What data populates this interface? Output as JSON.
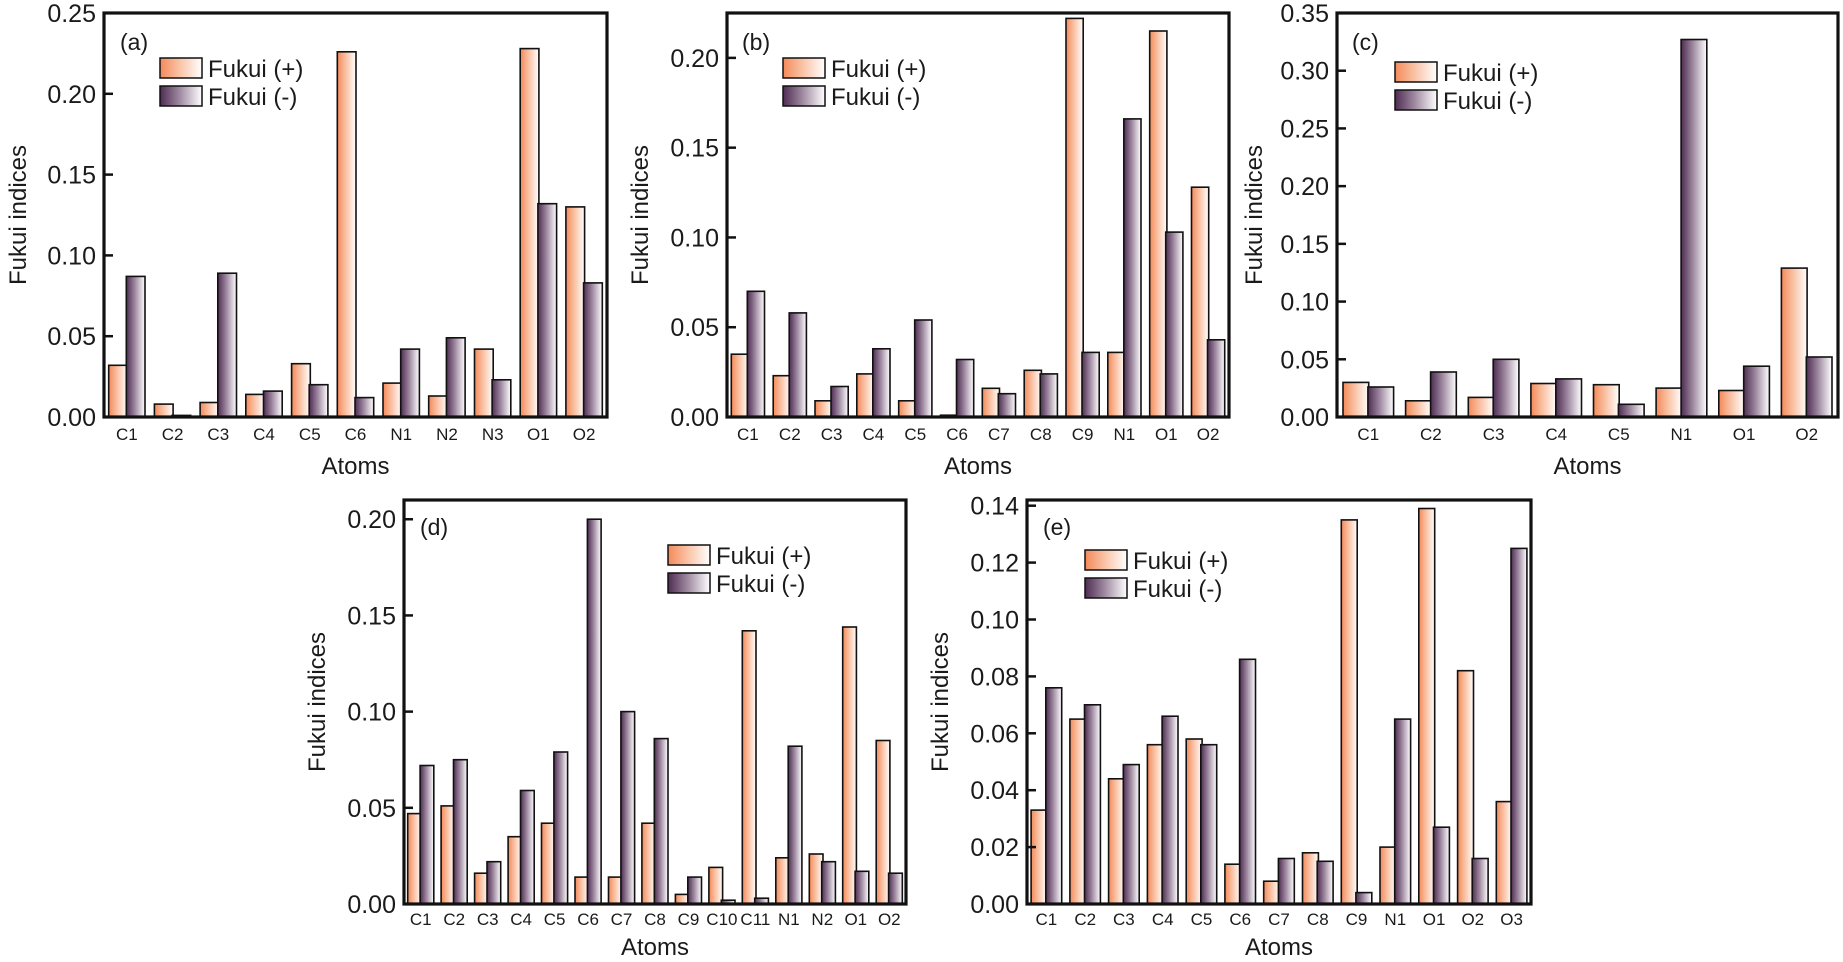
{
  "colors": {
    "plus": "#f4895a",
    "minus": "#4e2c52",
    "frame": "#111111"
  },
  "chart_data": [
    {
      "type": "bar",
      "panel": "(a)",
      "xlabel": "Atoms",
      "ylabel": "Fukui indices",
      "ylim": [
        0,
        0.25
      ],
      "yticks": [
        0.0,
        0.05,
        0.1,
        0.15,
        0.2,
        0.25
      ],
      "ytick_labels": [
        "0.00",
        "0.05",
        "0.10",
        "0.15",
        "0.20",
        "0.25"
      ],
      "legend_position": "top-left",
      "grid": false,
      "categories": [
        "C1",
        "C2",
        "C3",
        "C4",
        "C5",
        "C6",
        "N1",
        "N2",
        "N3",
        "O1",
        "O2"
      ],
      "series": [
        {
          "name": "Fukui (+)",
          "values": [
            0.032,
            0.008,
            0.009,
            0.014,
            0.033,
            0.226,
            0.021,
            0.013,
            0.042,
            0.228,
            0.13
          ]
        },
        {
          "name": "Fukui (-)",
          "values": [
            0.087,
            0.001,
            0.089,
            0.016,
            0.02,
            0.012,
            0.042,
            0.049,
            0.023,
            0.132,
            0.083
          ]
        }
      ]
    },
    {
      "type": "bar",
      "panel": "(b)",
      "xlabel": "Atoms",
      "ylabel": "Fukui indices",
      "ylim": [
        0,
        0.225
      ],
      "yticks": [
        0.0,
        0.05,
        0.1,
        0.15,
        0.2
      ],
      "ytick_labels": [
        "0.00",
        "0.05",
        "0.10",
        "0.15",
        "0.20"
      ],
      "legend_position": "top-left",
      "grid": false,
      "categories": [
        "C1",
        "C2",
        "C3",
        "C4",
        "C5",
        "C6",
        "C7",
        "C8",
        "C9",
        "N1",
        "O1",
        "O2"
      ],
      "series": [
        {
          "name": "Fukui (+)",
          "values": [
            0.035,
            0.023,
            0.009,
            0.024,
            0.009,
            0.001,
            0.016,
            0.026,
            0.222,
            0.036,
            0.215,
            0.128
          ]
        },
        {
          "name": "Fukui (-)",
          "values": [
            0.07,
            0.058,
            0.017,
            0.038,
            0.054,
            0.032,
            0.013,
            0.024,
            0.036,
            0.166,
            0.103,
            0.043
          ]
        }
      ]
    },
    {
      "type": "bar",
      "panel": "(c)",
      "xlabel": "Atoms",
      "ylabel": "Fukui indices",
      "ylim": [
        0,
        0.35
      ],
      "yticks": [
        0.0,
        0.05,
        0.1,
        0.15,
        0.2,
        0.25,
        0.3,
        0.35
      ],
      "ytick_labels": [
        "0.00",
        "0.05",
        "0.10",
        "0.15",
        "0.20",
        "0.25",
        "0.30",
        "0.35"
      ],
      "legend_position": "top-left",
      "grid": false,
      "categories": [
        "C1",
        "C2",
        "C3",
        "C4",
        "C5",
        "N1",
        "O1",
        "O2"
      ],
      "series": [
        {
          "name": "Fukui (+)",
          "values": [
            0.03,
            0.014,
            0.017,
            0.029,
            0.028,
            0.025,
            0.023,
            0.129
          ]
        },
        {
          "name": "Fukui (-)",
          "values": [
            0.026,
            0.039,
            0.05,
            0.033,
            0.011,
            0.327,
            0.044,
            0.052
          ]
        }
      ]
    },
    {
      "type": "bar",
      "panel": "(d)",
      "xlabel": "Atoms",
      "ylabel": "Fukui indices",
      "ylim": [
        0,
        0.21
      ],
      "yticks": [
        0.0,
        0.05,
        0.1,
        0.15,
        0.2
      ],
      "ytick_labels": [
        "0.00",
        "0.05",
        "0.10",
        "0.15",
        "0.20"
      ],
      "legend_position": "top-right",
      "grid": false,
      "categories": [
        "C1",
        "C2",
        "C3",
        "C4",
        "C5",
        "C6",
        "C7",
        "C8",
        "C9",
        "C10",
        "C11",
        "N1",
        "N2",
        "O1",
        "O2"
      ],
      "series": [
        {
          "name": "Fukui (+)",
          "values": [
            0.047,
            0.051,
            0.016,
            0.035,
            0.042,
            0.014,
            0.014,
            0.042,
            0.005,
            0.019,
            0.142,
            0.024,
            0.026,
            0.144,
            0.085
          ]
        },
        {
          "name": "Fukui (-)",
          "values": [
            0.072,
            0.075,
            0.022,
            0.059,
            0.079,
            0.2,
            0.1,
            0.086,
            0.014,
            0.002,
            0.003,
            0.082,
            0.022,
            0.017,
            0.016
          ]
        }
      ]
    },
    {
      "type": "bar",
      "panel": "(e)",
      "xlabel": "Atoms",
      "ylabel": "Fukui indices",
      "ylim": [
        0,
        0.142
      ],
      "yticks": [
        0.0,
        0.02,
        0.04,
        0.06,
        0.08,
        0.1,
        0.12,
        0.14
      ],
      "ytick_labels": [
        "0.00",
        "0.02",
        "0.04",
        "0.06",
        "0.08",
        "0.10",
        "0.12",
        "0.14"
      ],
      "legend_position": "top-left",
      "grid": false,
      "categories": [
        "C1",
        "C2",
        "C3",
        "C4",
        "C5",
        "C6",
        "C7",
        "C8",
        "C9",
        "N1",
        "O1",
        "O2",
        "O3"
      ],
      "series": [
        {
          "name": "Fukui (+)",
          "values": [
            0.033,
            0.065,
            0.044,
            0.056,
            0.058,
            0.014,
            0.008,
            0.018,
            0.135,
            0.02,
            0.139,
            0.082,
            0.036
          ]
        },
        {
          "name": "Fukui (-)",
          "values": [
            0.076,
            0.07,
            0.049,
            0.066,
            0.056,
            0.086,
            0.016,
            0.015,
            0.004,
            0.065,
            0.027,
            0.016,
            0.125
          ]
        }
      ]
    }
  ]
}
